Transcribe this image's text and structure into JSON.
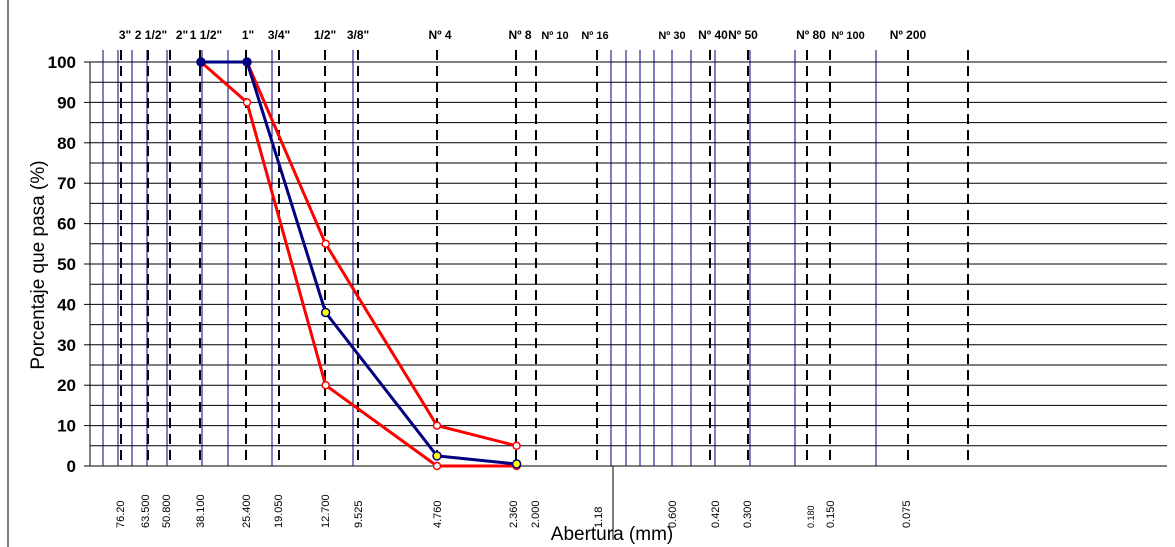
{
  "chart_data": {
    "type": "line",
    "xlabel": "Abertura (mm)",
    "ylabel": "Porcentaje que pasa (%)",
    "ylim": [
      0,
      100
    ],
    "y_ticks": [
      "0",
      "10",
      "20",
      "30",
      "40",
      "50",
      "60",
      "70",
      "80",
      "90",
      "100"
    ],
    "x_scale": "log",
    "x_reversed": true,
    "grid": true,
    "sieve_labels": [
      "3\"",
      "2 1/2\"",
      "2\"",
      "1 1/2\"",
      "1\"",
      "3/4\"",
      "1/2\"",
      "3/8\"",
      "Nº 4",
      "Nº 8",
      "Nº 10",
      "Nº 16",
      "Nº 30",
      "Nº 40",
      "Nº 50",
      "Nº 80",
      "Nº 100",
      "Nº 200"
    ],
    "x_tick_labels": [
      "76.20",
      "63.500",
      "50.800",
      "38.100",
      "25.400",
      "19.050",
      "12.700",
      "9.525",
      "4.760",
      "2.360",
      "2.000",
      "1.18",
      "0.600",
      "0.420",
      "0.300",
      "0.180",
      "0.150",
      "0.075"
    ],
    "series": [
      {
        "color": "#000080",
        "x": [
          38.1,
          25.4,
          12.7,
          4.76,
          2.36
        ],
        "y": [
          100,
          100,
          38,
          2.5,
          0.5
        ]
      },
      {
        "color": "#ff0000",
        "x": [
          38.1,
          25.4,
          12.7,
          4.76,
          2.36
        ],
        "y": [
          100,
          100,
          55,
          10,
          5
        ]
      },
      {
        "color": "#ff0000",
        "x": [
          38.1,
          25.4,
          12.7,
          4.76,
          2.36
        ],
        "y": [
          100,
          90,
          20,
          0,
          0
        ]
      }
    ]
  }
}
